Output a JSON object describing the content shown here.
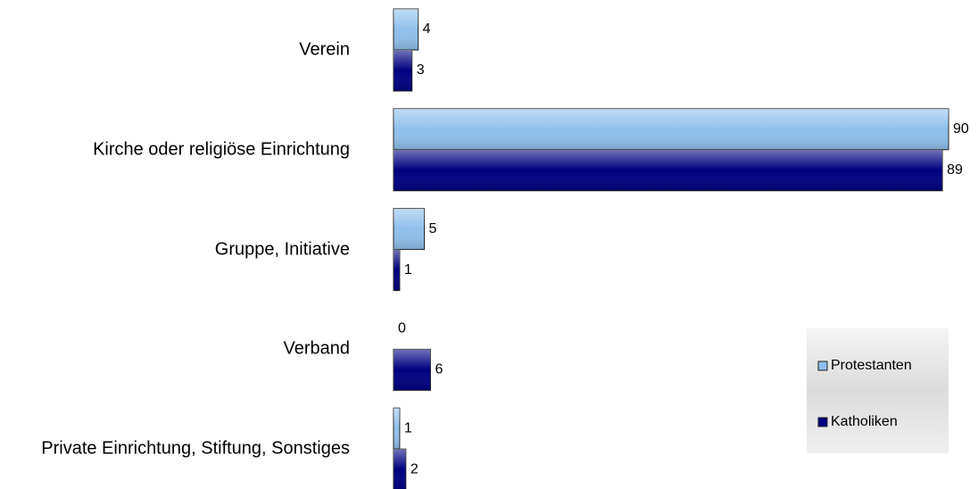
{
  "chart_data": {
    "type": "bar",
    "orientation": "horizontal",
    "categories": [
      "Verein",
      "Kirche oder religiöse Einrichtung",
      "Gruppe, Initiative",
      "Verband",
      "Private Einrichtung, Stiftung, Sonstiges"
    ],
    "series": [
      {
        "name": "Protestanten",
        "color": "#8fc0ec",
        "values": [
          4,
          90,
          5,
          0,
          1
        ]
      },
      {
        "name": "Katholiken",
        "color": "#000080",
        "values": [
          3,
          89,
          1,
          6,
          2
        ]
      }
    ],
    "xlim": [
      0,
      90
    ],
    "legend": "lower right"
  }
}
